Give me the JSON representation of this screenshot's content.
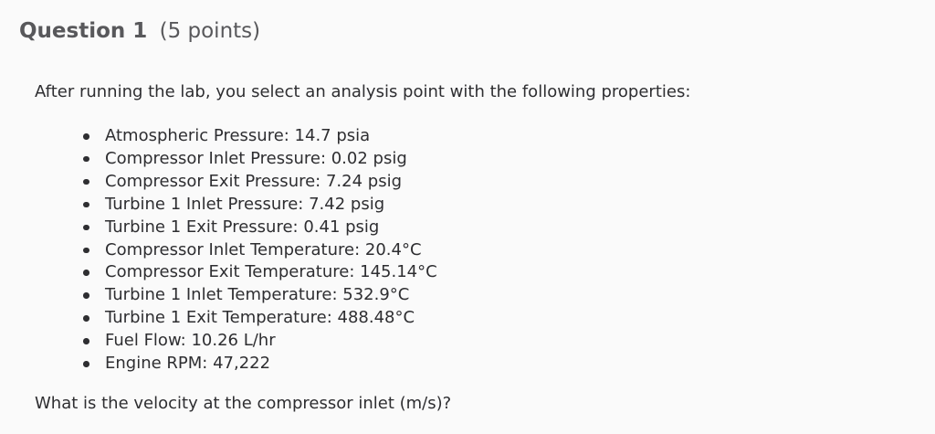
{
  "question": {
    "number_label": "Question 1",
    "points_label": "(5 points)",
    "intro": "After running the lab, you select an analysis point with the following properties:",
    "properties": [
      "Atmospheric Pressure: 14.7 psia",
      "Compressor Inlet Pressure: 0.02 psig",
      "Compressor Exit Pressure: 7.24 psig",
      "Turbine 1 Inlet Pressure: 7.42 psig",
      "Turbine 1 Exit Pressure: 0.41 psig",
      "Compressor Inlet Temperature: 20.4°C",
      "Compressor Exit Temperature: 145.14°C",
      "Turbine 1 Inlet Temperature: 532.9°C",
      "Turbine 1 Exit Temperature: 488.48°C",
      "Fuel Flow: 10.26 L/hr",
      "Engine RPM: 47,222"
    ],
    "prompt": "What is the velocity at the compressor inlet (m/s)?"
  },
  "colors": {
    "background": "#fafafa",
    "heading_text": "#58585b",
    "body_text": "#2e2e31"
  }
}
